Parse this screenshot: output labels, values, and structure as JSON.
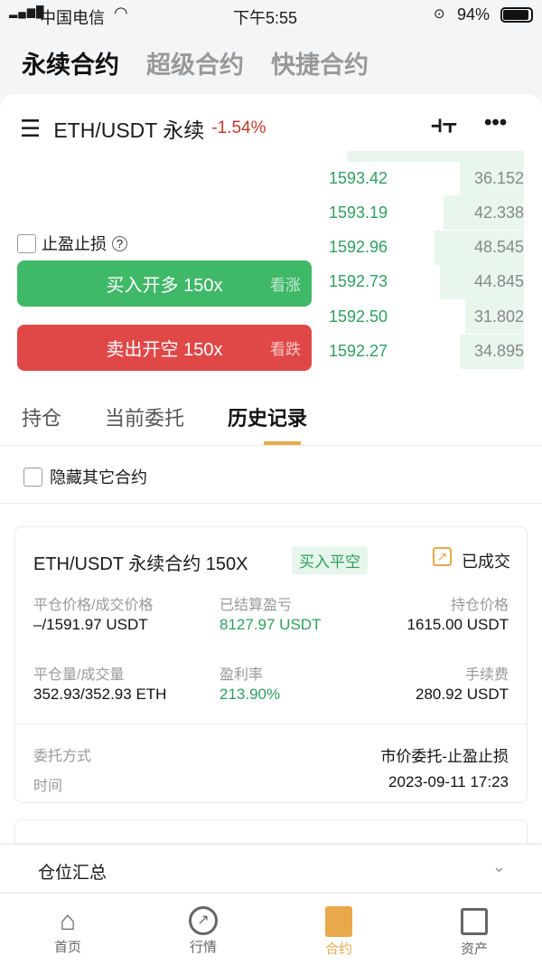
{
  "status_bar": {
    "carrier": "中国电信",
    "time": "下午5:55",
    "battery": "94%"
  },
  "top_tabs": [
    {
      "label": "永续合约",
      "active": true
    },
    {
      "label": "超级合约",
      "active": false
    },
    {
      "label": "快捷合约",
      "active": false
    }
  ],
  "pair": {
    "name": "ETH/USDT 永续",
    "change": "-1.54%"
  },
  "orderbook": [
    {
      "price": "1593.42",
      "qty": "36.152",
      "depth": 0.33
    },
    {
      "price": "1593.19",
      "qty": "42.338",
      "depth": 0.41
    },
    {
      "price": "1592.96",
      "qty": "48.545",
      "depth": 0.46
    },
    {
      "price": "1592.73",
      "qty": "44.845",
      "depth": 0.43
    },
    {
      "price": "1592.50",
      "qty": "31.802",
      "depth": 0.3
    },
    {
      "price": "1592.27",
      "qty": "34.895",
      "depth": 0.33
    }
  ],
  "tpsl_label": "止盈止损",
  "buy_button": {
    "label": "买入开多 150x",
    "hint": "看涨"
  },
  "sell_button": {
    "label": "卖出开空 150x",
    "hint": "看跌"
  },
  "sub_tabs": [
    {
      "label": "持仓"
    },
    {
      "label": "当前委托"
    },
    {
      "label": "历史记录",
      "active": true
    }
  ],
  "hide_others_label": "隐藏其它合约",
  "record": {
    "title": "ETH/USDT 永续合约 150X",
    "side": "买入平空",
    "status": "已成交",
    "fields": [
      {
        "label": "平仓价格/成交价格",
        "value": "–/1591.97 USDT"
      },
      {
        "label": "已结算盈亏",
        "value": "8127.97 USDT"
      },
      {
        "label": "持仓价格",
        "value": "1615.00 USDT"
      },
      {
        "label": "平仓量/成交量",
        "value": "352.93/352.93 ETH"
      },
      {
        "label": "盈利率",
        "value": "213.90%"
      },
      {
        "label": "手续费",
        "value": "280.92 USDT"
      }
    ],
    "order_type_label": "委托方式",
    "order_type": "市价委托-止盈止损",
    "time_label": "时间",
    "time": "2023-09-11 17:23"
  },
  "summary_label": "仓位汇总",
  "bottom_nav": [
    {
      "label": "首页",
      "icon": "home-icon"
    },
    {
      "label": "行情",
      "icon": "market-icon"
    },
    {
      "label": "合约",
      "icon": "contract-icon",
      "active": true
    },
    {
      "label": "资产",
      "icon": "wallet-icon"
    }
  ],
  "colors": {
    "accent": "#e9a84a",
    "buy": "#3fb868",
    "sell": "#e04848",
    "green_text": "#2f9e5e",
    "red_text": "#c0392b"
  }
}
